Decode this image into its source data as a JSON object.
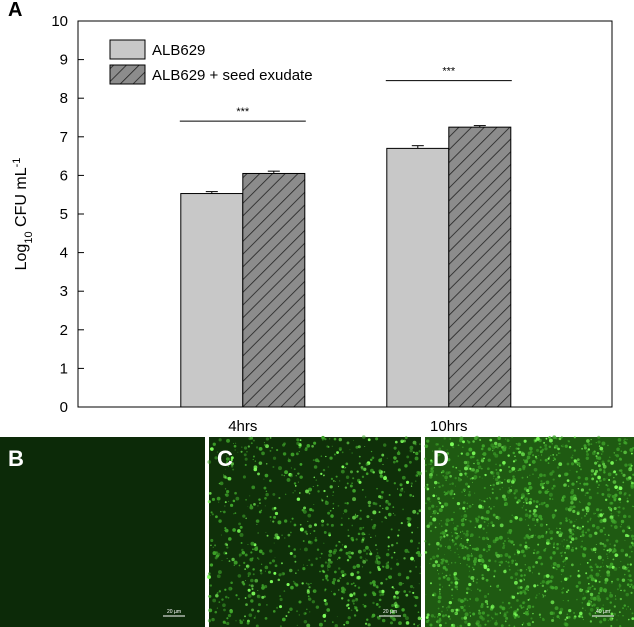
{
  "chart_data": {
    "type": "bar",
    "panel_label": "A",
    "ylabel": {
      "base": "Log",
      "sub": "10",
      "mid": " CFU mL",
      "sup": "-1"
    },
    "categories": [
      "4hrs",
      "10hrs"
    ],
    "series": [
      {
        "name": "ALB629",
        "color": "#c8c8c8",
        "hatch": false,
        "values": [
          5.53,
          6.7
        ],
        "errors": [
          0.05,
          0.07
        ]
      },
      {
        "name": "ALB629 + seed exudate",
        "color": "#8c8c8c",
        "hatch": true,
        "values": [
          6.05,
          7.25
        ],
        "errors": [
          0.06,
          0.04
        ]
      }
    ],
    "significance": [
      "***",
      "***"
    ],
    "ylim": [
      0,
      10
    ],
    "yticks": [
      0,
      1,
      2,
      3,
      4,
      5,
      6,
      7,
      8,
      9,
      10
    ],
    "legend": "upper left"
  },
  "panels": [
    {
      "label": "B",
      "scale_bar": "20 µm"
    },
    {
      "label": "C",
      "scale_bar": "20 µm"
    },
    {
      "label": "D",
      "scale_bar": "40 µm"
    }
  ]
}
